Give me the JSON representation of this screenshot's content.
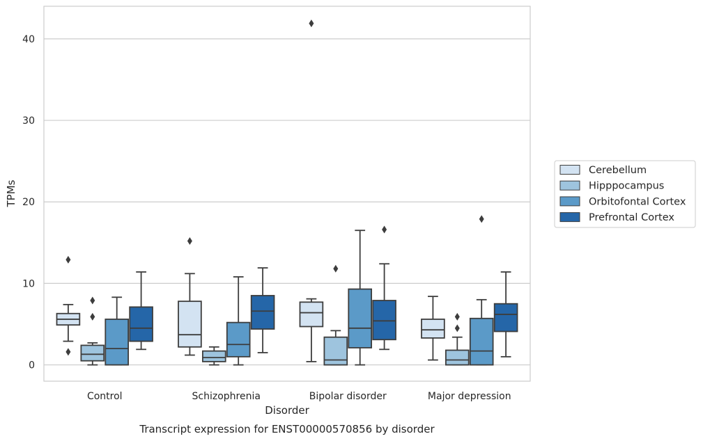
{
  "chart_data": {
    "type": "box",
    "caption": "Transcript expression for ENST00000570856 by disorder",
    "xlabel": "Disorder",
    "ylabel": "TPMs",
    "ylim": [
      -2,
      44
    ],
    "yticks": [
      0,
      10,
      20,
      30,
      40
    ],
    "grid": true,
    "legend_position": "right",
    "categories": [
      "Control",
      "Schizophrenia",
      "Bipolar disorder",
      "Major depression"
    ],
    "series": [
      {
        "name": "Cerebellum",
        "color": "#d3e3f2",
        "boxes": [
          {
            "whisker_low": 2.9,
            "q1": 4.9,
            "median": 5.6,
            "q3": 6.3,
            "whisker_high": 7.4,
            "outliers": [
              12.9,
              1.6
            ]
          },
          {
            "whisker_low": 1.2,
            "q1": 2.2,
            "median": 3.7,
            "q3": 7.8,
            "whisker_high": 11.2,
            "outliers": [
              15.2
            ]
          },
          {
            "whisker_low": 0.4,
            "q1": 4.7,
            "median": 6.4,
            "q3": 7.7,
            "whisker_high": 8.1,
            "outliers": [
              41.9
            ]
          },
          {
            "whisker_low": 0.6,
            "q1": 3.3,
            "median": 4.3,
            "q3": 5.6,
            "whisker_high": 8.4,
            "outliers": []
          }
        ]
      },
      {
        "name": "Hipppocampus",
        "color": "#9ec4de",
        "boxes": [
          {
            "whisker_low": 0.0,
            "q1": 0.5,
            "median": 1.3,
            "q3": 2.4,
            "whisker_high": 2.7,
            "outliers": [
              7.9,
              5.9
            ]
          },
          {
            "whisker_low": 0.0,
            "q1": 0.4,
            "median": 0.9,
            "q3": 1.7,
            "whisker_high": 2.2,
            "outliers": []
          },
          {
            "whisker_low": 0.0,
            "q1": 0.0,
            "median": 0.6,
            "q3": 3.4,
            "whisker_high": 4.2,
            "outliers": [
              11.8
            ]
          },
          {
            "whisker_low": 0.0,
            "q1": 0.0,
            "median": 0.6,
            "q3": 1.8,
            "whisker_high": 3.4,
            "outliers": [
              5.9,
              4.5
            ]
          }
        ]
      },
      {
        "name": "Orbitofontal Cortex",
        "color": "#5b9ac8",
        "boxes": [
          {
            "whisker_low": 0.0,
            "q1": 0.0,
            "median": 2.0,
            "q3": 5.6,
            "whisker_high": 8.3,
            "outliers": []
          },
          {
            "whisker_low": 0.0,
            "q1": 1.0,
            "median": 2.5,
            "q3": 5.2,
            "whisker_high": 10.8,
            "outliers": []
          },
          {
            "whisker_low": 0.0,
            "q1": 2.1,
            "median": 4.5,
            "q3": 9.3,
            "whisker_high": 16.5,
            "outliers": []
          },
          {
            "whisker_low": 0.0,
            "q1": 0.0,
            "median": 1.7,
            "q3": 5.7,
            "whisker_high": 8.0,
            "outliers": [
              17.9
            ]
          }
        ]
      },
      {
        "name": "Prefrontal Cortex",
        "color": "#2566a8",
        "boxes": [
          {
            "whisker_low": 1.9,
            "q1": 2.9,
            "median": 4.5,
            "q3": 7.1,
            "whisker_high": 11.4,
            "outliers": []
          },
          {
            "whisker_low": 1.5,
            "q1": 4.4,
            "median": 6.6,
            "q3": 8.5,
            "whisker_high": 11.9,
            "outliers": []
          },
          {
            "whisker_low": 1.9,
            "q1": 3.1,
            "median": 5.4,
            "q3": 7.9,
            "whisker_high": 12.4,
            "outliers": [
              16.6
            ]
          },
          {
            "whisker_low": 1.0,
            "q1": 4.1,
            "median": 6.2,
            "q3": 7.5,
            "whisker_high": 11.4,
            "outliers": []
          }
        ]
      }
    ]
  }
}
